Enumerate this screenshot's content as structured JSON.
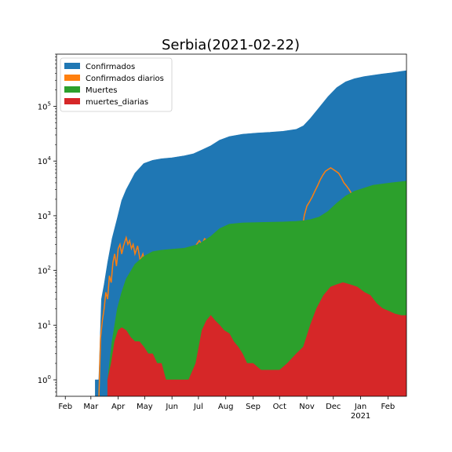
{
  "chart_data": {
    "type": "area",
    "title": "Serbia(2021-02-22)",
    "xlabel": "",
    "ylabel": "",
    "yscale": "log",
    "ylim": [
      0.5,
      900000
    ],
    "xlim": [
      "2020-01-22",
      "2021-02-22"
    ],
    "grid": false,
    "legend_position": "top-left",
    "x_ticks": [
      {
        "date": "2020-02-01",
        "label": "Feb",
        "sub": ""
      },
      {
        "date": "2020-03-01",
        "label": "Mar",
        "sub": ""
      },
      {
        "date": "2020-04-01",
        "label": "Apr",
        "sub": ""
      },
      {
        "date": "2020-05-01",
        "label": "May",
        "sub": ""
      },
      {
        "date": "2020-06-01",
        "label": "Jun",
        "sub": ""
      },
      {
        "date": "2020-07-01",
        "label": "Jul",
        "sub": ""
      },
      {
        "date": "2020-08-01",
        "label": "Aug",
        "sub": ""
      },
      {
        "date": "2020-09-01",
        "label": "Sep",
        "sub": ""
      },
      {
        "date": "2020-10-01",
        "label": "Oct",
        "sub": ""
      },
      {
        "date": "2020-11-01",
        "label": "Nov",
        "sub": ""
      },
      {
        "date": "2020-12-01",
        "label": "Dec",
        "sub": ""
      },
      {
        "date": "2021-01-01",
        "label": "Jan",
        "sub": "2021"
      },
      {
        "date": "2021-02-01",
        "label": "Feb",
        "sub": ""
      }
    ],
    "y_ticks": [
      {
        "value": 1,
        "base": "10",
        "exp": "0"
      },
      {
        "value": 10,
        "base": "10",
        "exp": "1"
      },
      {
        "value": 100,
        "base": "10",
        "exp": "2"
      },
      {
        "value": 1000,
        "base": "10",
        "exp": "3"
      },
      {
        "value": 10000,
        "base": "10",
        "exp": "4"
      },
      {
        "value": 100000,
        "base": "10",
        "exp": "5"
      }
    ],
    "series": [
      {
        "name": "Confirmados",
        "color": "#1f77b4",
        "kind": "area",
        "points": [
          [
            "2020-03-06",
            1
          ],
          [
            "2020-03-10",
            1
          ],
          [
            "2020-03-13",
            30
          ],
          [
            "2020-03-16",
            55
          ],
          [
            "2020-03-20",
            140
          ],
          [
            "2020-03-25",
            380
          ],
          [
            "2020-03-31",
            900
          ],
          [
            "2020-04-05",
            1900
          ],
          [
            "2020-04-10",
            3000
          ],
          [
            "2020-04-20",
            6000
          ],
          [
            "2020-04-30",
            9000
          ],
          [
            "2020-05-10",
            10300
          ],
          [
            "2020-05-20",
            11000
          ],
          [
            "2020-06-01",
            11500
          ],
          [
            "2020-06-15",
            12500
          ],
          [
            "2020-06-25",
            13500
          ],
          [
            "2020-07-05",
            16000
          ],
          [
            "2020-07-15",
            19000
          ],
          [
            "2020-07-25",
            24000
          ],
          [
            "2020-08-05",
            28000
          ],
          [
            "2020-08-20",
            31000
          ],
          [
            "2020-09-05",
            32500
          ],
          [
            "2020-09-20",
            33500
          ],
          [
            "2020-10-05",
            35000
          ],
          [
            "2020-10-20",
            38000
          ],
          [
            "2020-10-28",
            44000
          ],
          [
            "2020-11-05",
            60000
          ],
          [
            "2020-11-15",
            95000
          ],
          [
            "2020-11-25",
            150000
          ],
          [
            "2020-12-05",
            220000
          ],
          [
            "2020-12-15",
            280000
          ],
          [
            "2020-12-25",
            320000
          ],
          [
            "2021-01-05",
            350000
          ],
          [
            "2021-01-15",
            370000
          ],
          [
            "2021-01-25",
            390000
          ],
          [
            "2021-02-05",
            410000
          ],
          [
            "2021-02-22",
            450000
          ]
        ]
      },
      {
        "name": "Confirmados diarios",
        "color": "#ff7f0e",
        "kind": "line",
        "points": [
          [
            "2020-03-10",
            0.4
          ],
          [
            "2020-03-12",
            6
          ],
          [
            "2020-03-14",
            12
          ],
          [
            "2020-03-16",
            20
          ],
          [
            "2020-03-18",
            40
          ],
          [
            "2020-03-20",
            30
          ],
          [
            "2020-03-22",
            80
          ],
          [
            "2020-03-24",
            60
          ],
          [
            "2020-03-26",
            140
          ],
          [
            "2020-03-28",
            200
          ],
          [
            "2020-03-30",
            120
          ],
          [
            "2020-04-01",
            250
          ],
          [
            "2020-04-03",
            300
          ],
          [
            "2020-04-05",
            200
          ],
          [
            "2020-04-07",
            280
          ],
          [
            "2020-04-10",
            400
          ],
          [
            "2020-04-12",
            300
          ],
          [
            "2020-04-14",
            350
          ],
          [
            "2020-04-16",
            250
          ],
          [
            "2020-04-18",
            300
          ],
          [
            "2020-04-20",
            200
          ],
          [
            "2020-04-23",
            280
          ],
          [
            "2020-04-26",
            150
          ],
          [
            "2020-04-29",
            200
          ],
          [
            "2020-05-02",
            120
          ],
          [
            "2020-05-05",
            100
          ],
          [
            "2020-05-08",
            80
          ],
          [
            "2020-05-11",
            60
          ],
          [
            "2020-05-14",
            100
          ],
          [
            "2020-05-17",
            80
          ],
          [
            "2020-05-20",
            60
          ],
          [
            "2020-05-23",
            40
          ],
          [
            "2020-05-26",
            80
          ],
          [
            "2020-05-29",
            60
          ],
          [
            "2020-06-02",
            50
          ],
          [
            "2020-06-05",
            70
          ],
          [
            "2020-06-08",
            90
          ],
          [
            "2020-06-11",
            60
          ],
          [
            "2020-06-14",
            80
          ],
          [
            "2020-06-17",
            100
          ],
          [
            "2020-06-20",
            150
          ],
          [
            "2020-06-23",
            200
          ],
          [
            "2020-06-26",
            250
          ],
          [
            "2020-06-29",
            300
          ],
          [
            "2020-07-02",
            350
          ],
          [
            "2020-07-05",
            300
          ],
          [
            "2020-07-08",
            380
          ],
          [
            "2020-07-11",
            350
          ],
          [
            "2020-07-14",
            400
          ],
          [
            "2020-07-17",
            300
          ],
          [
            "2020-07-20",
            380
          ],
          [
            "2020-07-23",
            400
          ],
          [
            "2020-07-26",
            350
          ],
          [
            "2020-07-29",
            300
          ],
          [
            "2020-08-01",
            250
          ],
          [
            "2020-08-04",
            200
          ],
          [
            "2020-08-07",
            150
          ],
          [
            "2020-08-10",
            120
          ],
          [
            "2020-08-13",
            100
          ],
          [
            "2020-08-16",
            80
          ],
          [
            "2020-08-19",
            100
          ],
          [
            "2020-08-22",
            70
          ],
          [
            "2020-08-25",
            60
          ],
          [
            "2020-08-28",
            80
          ],
          [
            "2020-08-31",
            50
          ],
          [
            "2020-09-03",
            60
          ],
          [
            "2020-09-06",
            40
          ],
          [
            "2020-09-09",
            50
          ],
          [
            "2020-09-12",
            30
          ],
          [
            "2020-09-15",
            60
          ],
          [
            "2020-09-18",
            40
          ],
          [
            "2020-09-21",
            70
          ],
          [
            "2020-09-24",
            50
          ],
          [
            "2020-09-27",
            80
          ],
          [
            "2020-09-30",
            60
          ],
          [
            "2020-10-03",
            100
          ],
          [
            "2020-10-06",
            80
          ],
          [
            "2020-10-09",
            120
          ],
          [
            "2020-10-12",
            90
          ],
          [
            "2020-10-15",
            150
          ],
          [
            "2020-10-18",
            200
          ],
          [
            "2020-10-21",
            300
          ],
          [
            "2020-10-24",
            400
          ],
          [
            "2020-10-27",
            600
          ],
          [
            "2020-10-29",
            1000
          ],
          [
            "2020-11-01",
            1500
          ],
          [
            "2020-11-04",
            1800
          ],
          [
            "2020-11-07",
            2200
          ],
          [
            "2020-11-10",
            2800
          ],
          [
            "2020-11-13",
            3500
          ],
          [
            "2020-11-16",
            4500
          ],
          [
            "2020-11-19",
            5500
          ],
          [
            "2020-11-22",
            6500
          ],
          [
            "2020-11-25",
            7000
          ],
          [
            "2020-11-28",
            7500
          ],
          [
            "2020-12-01",
            7000
          ],
          [
            "2020-12-04",
            6500
          ],
          [
            "2020-12-07",
            6000
          ],
          [
            "2020-12-10",
            5000
          ],
          [
            "2020-12-13",
            4000
          ],
          [
            "2020-12-16",
            3500
          ],
          [
            "2020-12-19",
            3000
          ],
          [
            "2020-12-22",
            2500
          ],
          [
            "2020-12-25",
            2000
          ],
          [
            "2020-12-28",
            2200
          ],
          [
            "2020-12-31",
            1500
          ],
          [
            "2021-01-03",
            1800
          ],
          [
            "2021-01-06",
            2000
          ],
          [
            "2021-01-09",
            1800
          ],
          [
            "2021-01-12",
            2500
          ],
          [
            "2021-01-15",
            2000
          ],
          [
            "2021-01-18",
            1800
          ],
          [
            "2021-01-21",
            2000
          ],
          [
            "2021-01-24",
            1500
          ],
          [
            "2021-01-27",
            2200
          ],
          [
            "2021-01-30",
            1600
          ],
          [
            "2021-02-02",
            1800
          ],
          [
            "2021-02-05",
            1500
          ],
          [
            "2021-02-08",
            2000
          ],
          [
            "2021-02-11",
            1600
          ],
          [
            "2021-02-14",
            1800
          ],
          [
            "2021-02-17",
            2000
          ],
          [
            "2021-02-20",
            2500
          ],
          [
            "2021-02-22",
            2300
          ]
        ]
      },
      {
        "name": "Muertes",
        "color": "#2ca02c",
        "kind": "area",
        "points": [
          [
            "2020-03-20",
            1
          ],
          [
            "2020-03-25",
            5
          ],
          [
            "2020-03-31",
            20
          ],
          [
            "2020-04-05",
            40
          ],
          [
            "2020-04-10",
            70
          ],
          [
            "2020-04-20",
            130
          ],
          [
            "2020-04-30",
            180
          ],
          [
            "2020-05-10",
            220
          ],
          [
            "2020-05-20",
            235
          ],
          [
            "2020-06-01",
            245
          ],
          [
            "2020-06-15",
            255
          ],
          [
            "2020-07-01",
            300
          ],
          [
            "2020-07-15",
            420
          ],
          [
            "2020-07-25",
            580
          ],
          [
            "2020-08-05",
            700
          ],
          [
            "2020-08-20",
            740
          ],
          [
            "2020-09-05",
            750
          ],
          [
            "2020-09-20",
            760
          ],
          [
            "2020-10-05",
            770
          ],
          [
            "2020-10-20",
            790
          ],
          [
            "2020-10-28",
            810
          ],
          [
            "2020-11-05",
            850
          ],
          [
            "2020-11-15",
            950
          ],
          [
            "2020-11-25",
            1200
          ],
          [
            "2020-12-05",
            1700
          ],
          [
            "2020-12-15",
            2300
          ],
          [
            "2020-12-25",
            2800
          ],
          [
            "2021-01-05",
            3200
          ],
          [
            "2021-01-15",
            3600
          ],
          [
            "2021-01-25",
            3800
          ],
          [
            "2021-02-05",
            4000
          ],
          [
            "2021-02-22",
            4300
          ]
        ]
      },
      {
        "name": "muertes_diarias",
        "color": "#d62728",
        "kind": "area",
        "points": [
          [
            "2020-03-20",
            1
          ],
          [
            "2020-03-24",
            2
          ],
          [
            "2020-03-28",
            5
          ],
          [
            "2020-04-01",
            8
          ],
          [
            "2020-04-05",
            9
          ],
          [
            "2020-04-10",
            8
          ],
          [
            "2020-04-15",
            6
          ],
          [
            "2020-04-20",
            5
          ],
          [
            "2020-04-25",
            5
          ],
          [
            "2020-04-30",
            4
          ],
          [
            "2020-05-05",
            3
          ],
          [
            "2020-05-10",
            3
          ],
          [
            "2020-05-15",
            2
          ],
          [
            "2020-05-20",
            2
          ],
          [
            "2020-05-25",
            1
          ],
          [
            "2020-06-01",
            1
          ],
          [
            "2020-06-10",
            1
          ],
          [
            "2020-06-20",
            1
          ],
          [
            "2020-06-28",
            2
          ],
          [
            "2020-07-05",
            8
          ],
          [
            "2020-07-10",
            12
          ],
          [
            "2020-07-15",
            15
          ],
          [
            "2020-07-20",
            12
          ],
          [
            "2020-07-25",
            10
          ],
          [
            "2020-07-30",
            8
          ],
          [
            "2020-08-05",
            7
          ],
          [
            "2020-08-10",
            5
          ],
          [
            "2020-08-15",
            4
          ],
          [
            "2020-08-20",
            3
          ],
          [
            "2020-08-25",
            2
          ],
          [
            "2020-09-01",
            2
          ],
          [
            "2020-09-10",
            1.5
          ],
          [
            "2020-09-20",
            1.5
          ],
          [
            "2020-10-01",
            1.5
          ],
          [
            "2020-10-10",
            2
          ],
          [
            "2020-10-20",
            3
          ],
          [
            "2020-10-28",
            4
          ],
          [
            "2020-11-05",
            10
          ],
          [
            "2020-11-12",
            20
          ],
          [
            "2020-11-20",
            35
          ],
          [
            "2020-11-28",
            50
          ],
          [
            "2020-12-05",
            55
          ],
          [
            "2020-12-12",
            60
          ],
          [
            "2020-12-20",
            55
          ],
          [
            "2020-12-28",
            50
          ],
          [
            "2021-01-05",
            40
          ],
          [
            "2021-01-12",
            35
          ],
          [
            "2021-01-19",
            25
          ],
          [
            "2021-01-26",
            20
          ],
          [
            "2021-02-02",
            18
          ],
          [
            "2021-02-09",
            16
          ],
          [
            "2021-02-16",
            15
          ],
          [
            "2021-02-22",
            15
          ]
        ]
      }
    ]
  }
}
